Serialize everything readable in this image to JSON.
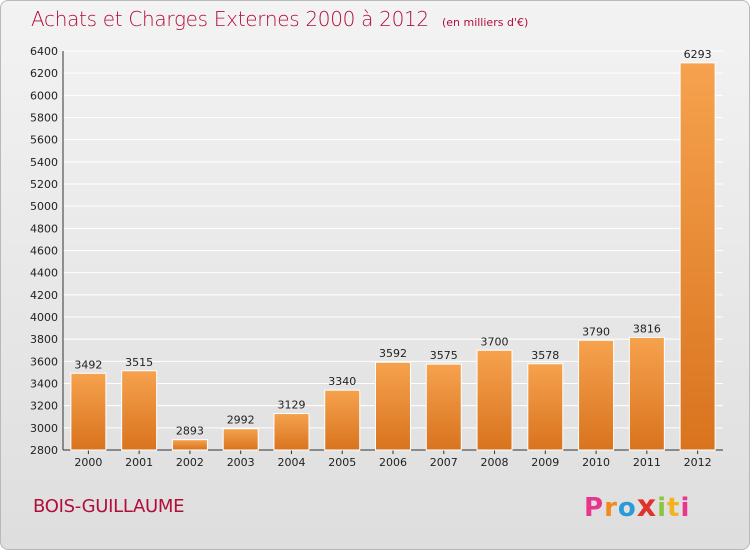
{
  "header": {
    "title": "Achats et Charges Externes 2000 à 2012",
    "unit": "(en milliers d'€)"
  },
  "footer": {
    "commune": "BOIS-GUILLAUME",
    "logo_letters": [
      "P",
      "r",
      "o",
      "x",
      "i",
      "t",
      "i"
    ],
    "logo_colors": [
      "#e8358e",
      "#f08a1c",
      "#2a9ad8",
      "#e0322b",
      "#8cc63f",
      "#f2b321",
      "#e8358e"
    ]
  },
  "colors": {
    "bar_light": "#f6a24e",
    "bar_dark": "#d9731e",
    "title": "#b30d3b",
    "grid": "#ffffff"
  },
  "chart_data": {
    "type": "bar",
    "title": "Achats et Charges Externes 2000 à 2012",
    "subtitle": "(en milliers d'€)",
    "xlabel": "",
    "ylabel": "",
    "categories": [
      "2000",
      "2001",
      "2002",
      "2003",
      "2004",
      "2005",
      "2006",
      "2007",
      "2008",
      "2009",
      "2010",
      "2011",
      "2012"
    ],
    "values": [
      3492,
      3515,
      2893,
      2992,
      3129,
      3340,
      3592,
      3575,
      3700,
      3578,
      3790,
      3816,
      6293
    ],
    "ylim": [
      2800,
      6400
    ],
    "ytick_step": 200,
    "grid": true
  }
}
